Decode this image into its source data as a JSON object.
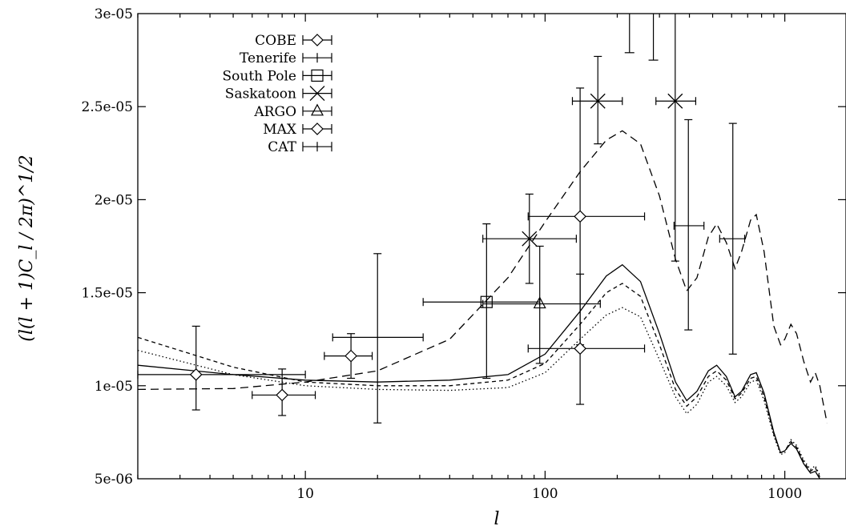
{
  "chart_data": {
    "type": "scatter",
    "xlabel": "l",
    "ylabel": "(l(l + 1)C_l / 2π)^1/2",
    "xscale": "log",
    "xlim": [
      2,
      1800
    ],
    "ylim": [
      5e-06,
      3e-05
    ],
    "xticks": [
      {
        "v": 10,
        "label": "10"
      },
      {
        "v": 100,
        "label": "100"
      },
      {
        "v": 1000,
        "label": "1000"
      }
    ],
    "yticks": [
      {
        "v": 5e-06,
        "label": "5e-06"
      },
      {
        "v": 1e-05,
        "label": "1e-05"
      },
      {
        "v": 1.5e-05,
        "label": "1.5e-05"
      },
      {
        "v": 2e-05,
        "label": "2e-05"
      },
      {
        "v": 2.5e-05,
        "label": "2.5e-05"
      },
      {
        "v": 3e-05,
        "label": "3e-05"
      }
    ],
    "legend_position": "top-left",
    "series": [
      {
        "name": "COBE",
        "marker": "diamond",
        "points": [
          {
            "x": 3.5,
            "y": 1.06e-05,
            "xerr": [
              2,
              10
            ],
            "yerr": [
              8.7e-06,
              1.32e-05
            ]
          },
          {
            "x": 8,
            "y": 9.5e-06,
            "xerr": [
              6,
              11
            ],
            "yerr": [
              8.4e-06,
              1.09e-05
            ]
          },
          {
            "x": 15.5,
            "y": 1.16e-05,
            "xerr": [
              12,
              19
            ],
            "yerr": [
              1.04e-05,
              1.28e-05
            ]
          }
        ]
      },
      {
        "name": "Tenerife",
        "marker": "none",
        "points": [
          {
            "x": 20,
            "y": 1.26e-05,
            "xerr": [
              13,
              31
            ],
            "yerr": [
              8e-06,
              1.71e-05
            ]
          }
        ]
      },
      {
        "name": "South Pole",
        "marker": "square",
        "points": [
          {
            "x": 57,
            "y": 1.45e-05,
            "xerr": [
              31,
              95
            ],
            "yerr": [
              1.04e-05,
              1.87e-05
            ]
          }
        ]
      },
      {
        "name": "Saskatoon",
        "marker": "x",
        "points": [
          {
            "x": 86,
            "y": 1.79e-05,
            "xerr": [
              55,
              135
            ],
            "yerr": [
              1.55e-05,
              2.03e-05
            ]
          },
          {
            "x": 166,
            "y": 2.53e-05,
            "xerr": [
              130,
              210
            ],
            "yerr": [
              2.3e-05,
              2.77e-05
            ]
          },
          {
            "x": 349,
            "y": 2.53e-05,
            "xerr": [
              290,
              425
            ],
            "yerr": [
              1.67e-05,
              3.02e-05
            ]
          }
        ]
      },
      {
        "name": "ARGO",
        "marker": "triangle",
        "points": [
          {
            "x": 95,
            "y": 1.44e-05,
            "xerr": [
              55,
              170
            ],
            "yerr": [
              1.12e-05,
              1.75e-05
            ]
          }
        ]
      },
      {
        "name": "MAX",
        "marker": "diamond",
        "points": [
          {
            "x": 140,
            "y": 1.91e-05,
            "xerr": [
              85,
              260
            ],
            "yerr": [
              1.22e-05,
              2.6e-05
            ]
          },
          {
            "x": 140,
            "y": 1.2e-05,
            "xerr": [
              85,
              260
            ],
            "yerr": [
              9e-06,
              1.6e-05
            ]
          }
        ]
      },
      {
        "name": "CAT",
        "marker": "none",
        "points": [
          {
            "x": 396,
            "y": 1.86e-05,
            "xerr": [
              345,
              460
            ],
            "yerr": [
              1.3e-05,
              2.43e-05
            ]
          },
          {
            "x": 607,
            "y": 1.79e-05,
            "xerr": [
              535,
              680
            ],
            "yerr": [
              1.17e-05,
              2.41e-05
            ]
          }
        ]
      }
    ],
    "extra_error_bars": [
      {
        "x": 225,
        "yerr": [
          2.79e-05,
          3e-05
        ]
      },
      {
        "x": 283,
        "yerr": [
          2.75e-05,
          3e-05
        ]
      }
    ],
    "curves": [
      {
        "style": "long-dash",
        "points": [
          [
            2,
            9.8e-06
          ],
          [
            5,
            9.85e-06
          ],
          [
            10,
            1.02e-05
          ],
          [
            20,
            1.08e-05
          ],
          [
            40,
            1.25e-05
          ],
          [
            70,
            1.58e-05
          ],
          [
            100,
            1.88e-05
          ],
          [
            140,
            2.15e-05
          ],
          [
            180,
            2.32e-05
          ],
          [
            210,
            2.37e-05
          ],
          [
            250,
            2.3e-05
          ],
          [
            300,
            2.02e-05
          ],
          [
            350,
            1.68e-05
          ],
          [
            390,
            1.51e-05
          ],
          [
            430,
            1.58e-05
          ],
          [
            480,
            1.8e-05
          ],
          [
            520,
            1.87e-05
          ],
          [
            570,
            1.77e-05
          ],
          [
            620,
            1.63e-05
          ],
          [
            660,
            1.72e-05
          ],
          [
            720,
            1.89e-05
          ],
          [
            760,
            1.92e-05
          ],
          [
            820,
            1.72e-05
          ],
          [
            900,
            1.32e-05
          ],
          [
            960,
            1.22e-05
          ],
          [
            1000,
            1.25e-05
          ],
          [
            1060,
            1.33e-05
          ],
          [
            1120,
            1.28e-05
          ],
          [
            1200,
            1.13e-05
          ],
          [
            1280,
            1.02e-05
          ],
          [
            1340,
            1.07e-05
          ],
          [
            1400,
            1e-05
          ],
          [
            1500,
            8e-06
          ]
        ]
      },
      {
        "style": "solid",
        "points": [
          [
            2,
            1.11e-05
          ],
          [
            5,
            1.06e-05
          ],
          [
            10,
            1.03e-05
          ],
          [
            20,
            1.02e-05
          ],
          [
            40,
            1.03e-05
          ],
          [
            70,
            1.06e-05
          ],
          [
            100,
            1.17e-05
          ],
          [
            140,
            1.4e-05
          ],
          [
            180,
            1.59e-05
          ],
          [
            210,
            1.65e-05
          ],
          [
            250,
            1.56e-05
          ],
          [
            300,
            1.28e-05
          ],
          [
            350,
            1.02e-05
          ],
          [
            390,
            9.2e-06
          ],
          [
            430,
            9.7e-06
          ],
          [
            480,
            1.08e-05
          ],
          [
            520,
            1.11e-05
          ],
          [
            570,
            1.05e-05
          ],
          [
            620,
            9.4e-06
          ],
          [
            660,
            9.7e-06
          ],
          [
            720,
            1.06e-05
          ],
          [
            760,
            1.07e-05
          ],
          [
            820,
            9.6e-06
          ],
          [
            900,
            7.5e-06
          ],
          [
            960,
            6.4e-06
          ],
          [
            1000,
            6.5e-06
          ],
          [
            1060,
            6.9e-06
          ],
          [
            1120,
            6.6e-06
          ],
          [
            1200,
            5.8e-06
          ],
          [
            1280,
            5.3e-06
          ],
          [
            1340,
            5.4e-06
          ],
          [
            1400,
            5e-06
          ]
        ]
      },
      {
        "style": "short-dash",
        "points": [
          [
            2,
            1.26e-05
          ],
          [
            5,
            1.1e-05
          ],
          [
            10,
            1.02e-05
          ],
          [
            20,
            1e-05
          ],
          [
            40,
            1e-05
          ],
          [
            70,
            1.03e-05
          ],
          [
            100,
            1.12e-05
          ],
          [
            140,
            1.33e-05
          ],
          [
            180,
            1.5e-05
          ],
          [
            210,
            1.55e-05
          ],
          [
            250,
            1.48e-05
          ],
          [
            300,
            1.22e-05
          ],
          [
            350,
            9.8e-06
          ],
          [
            390,
            8.9e-06
          ],
          [
            430,
            9.4e-06
          ],
          [
            480,
            1.05e-05
          ],
          [
            520,
            1.08e-05
          ],
          [
            570,
            1.03e-05
          ],
          [
            620,
            9.3e-06
          ],
          [
            660,
            9.6e-06
          ],
          [
            720,
            1.04e-05
          ],
          [
            760,
            1.05e-05
          ],
          [
            820,
            9.4e-06
          ],
          [
            900,
            7.4e-06
          ],
          [
            960,
            6.4e-06
          ],
          [
            1000,
            6.5e-06
          ],
          [
            1060,
            7e-06
          ],
          [
            1120,
            6.7e-06
          ],
          [
            1200,
            5.9e-06
          ],
          [
            1280,
            5.4e-06
          ],
          [
            1340,
            5.6e-06
          ],
          [
            1400,
            5.1e-06
          ]
        ]
      },
      {
        "style": "dotted",
        "points": [
          [
            2,
            1.19e-05
          ],
          [
            5,
            1.06e-05
          ],
          [
            10,
            1e-05
          ],
          [
            20,
            9.8e-06
          ],
          [
            40,
            9.75e-06
          ],
          [
            70,
            9.9e-06
          ],
          [
            100,
            1.07e-05
          ],
          [
            140,
            1.25e-05
          ],
          [
            180,
            1.38e-05
          ],
          [
            210,
            1.42e-05
          ],
          [
            250,
            1.37e-05
          ],
          [
            300,
            1.14e-05
          ],
          [
            350,
            9.4e-06
          ],
          [
            390,
            8.5e-06
          ],
          [
            430,
            9e-06
          ],
          [
            480,
            1.02e-05
          ],
          [
            520,
            1.05e-05
          ],
          [
            570,
            1e-05
          ],
          [
            620,
            9.1e-06
          ],
          [
            660,
            9.4e-06
          ],
          [
            720,
            1.02e-05
          ],
          [
            760,
            1.03e-05
          ],
          [
            820,
            9.2e-06
          ],
          [
            900,
            7.3e-06
          ],
          [
            960,
            6.3e-06
          ],
          [
            1000,
            6.4e-06
          ],
          [
            1060,
            7.1e-06
          ],
          [
            1120,
            6.8e-06
          ],
          [
            1200,
            6e-06
          ],
          [
            1280,
            5.5e-06
          ],
          [
            1340,
            5.7e-06
          ],
          [
            1400,
            5.2e-06
          ]
        ]
      }
    ]
  }
}
